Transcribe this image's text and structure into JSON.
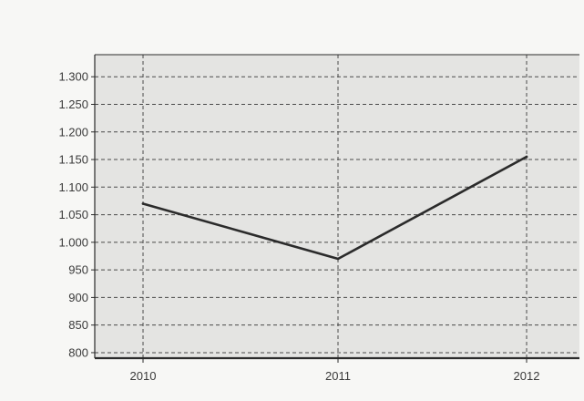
{
  "chart_data": {
    "type": "line",
    "title": "",
    "xlabel": "",
    "ylabel": "",
    "categories": [
      "2010",
      "2011",
      "2012"
    ],
    "series": [
      {
        "values": [
          1070,
          970,
          1155
        ]
      }
    ],
    "ylim": [
      790,
      1340
    ],
    "yticks": [
      800,
      850,
      900,
      950,
      1000,
      1050,
      1100,
      1150,
      1200,
      1250,
      1300
    ],
    "ytick_labels": [
      "800",
      "850",
      "900",
      "950",
      "1.000",
      "1.050",
      "1.100",
      "1.150",
      "1.200",
      "1.250",
      "1.300"
    ],
    "grid": true,
    "legend": "none"
  },
  "colors": {
    "page_background": "#f7f7f5",
    "plot_background": "#e4e4e2",
    "line": "#2b2b2b",
    "grid": "#4a4a4a",
    "axis": "#2b2b2b"
  }
}
